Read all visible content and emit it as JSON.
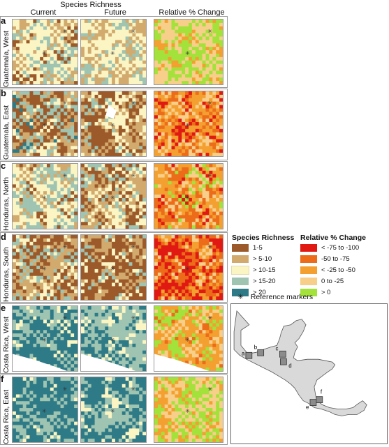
{
  "header": {
    "super_title": "Species Richness",
    "columns": [
      "Current",
      "Future",
      "Relative % Change"
    ]
  },
  "rows": [
    {
      "letter": "a",
      "name": "Guatemala, West"
    },
    {
      "letter": "b",
      "name": "Guatemala, East"
    },
    {
      "letter": "c",
      "name": "Honduras, North"
    },
    {
      "letter": "d",
      "name": "Honduras, South"
    },
    {
      "letter": "e",
      "name": "Costa Rica, West"
    },
    {
      "letter": "f",
      "name": "Costa Rica, East"
    }
  ],
  "legend_richness": {
    "title": "Species Richness",
    "items": [
      {
        "label": "1-5",
        "color": "#9c5a2a"
      },
      {
        "label": "> 5-10",
        "color": "#d2aa6e"
      },
      {
        "label": "> 10-15",
        "color": "#fbf5c4"
      },
      {
        "label": "> 15-20",
        "color": "#9fc4b1"
      },
      {
        "label": "> 20",
        "color": "#2e7a86"
      }
    ]
  },
  "legend_change": {
    "title": "Relative % Change",
    "items": [
      {
        "label": "< -75 to -100",
        "color": "#e01a12"
      },
      {
        "label": "-50 to -75",
        "color": "#ec6c1a"
      },
      {
        "label": "< -25 to -50",
        "color": "#f4a030"
      },
      {
        "label": "0 to -25",
        "color": "#f8cf8a"
      },
      {
        "label": "> 0",
        "color": "#a2e23a"
      }
    ]
  },
  "reference": {
    "symbol": "✳",
    "label": "Reference markers"
  },
  "map": {
    "land_color": "#d9d9d9",
    "box_color": "#8c8c8c",
    "labels": [
      "a",
      "b",
      "c",
      "d",
      "e",
      "f"
    ]
  }
}
